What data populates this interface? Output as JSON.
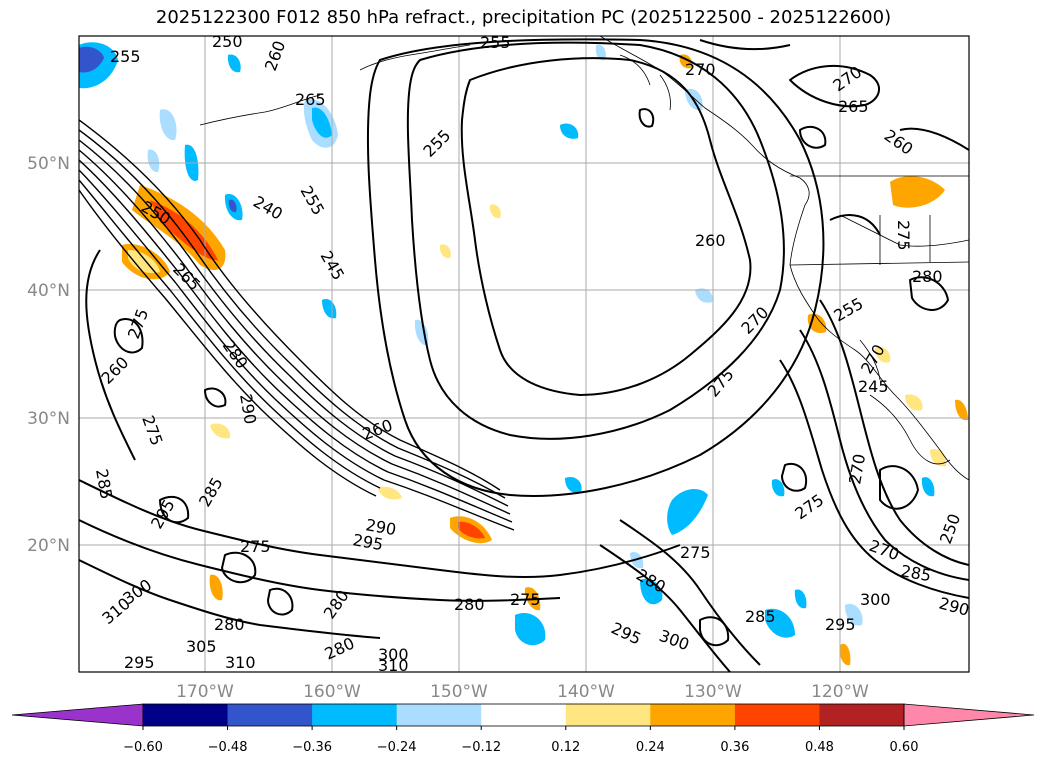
{
  "title": "2025122300 F012 850 hPa refract., precipitation PC (2025122500 - 2025122600)",
  "lat_labels": [
    "50°N",
    "40°N",
    "30°N",
    "20°N"
  ],
  "lon_labels": [
    "170°W",
    "160°W",
    "150°W",
    "140°W",
    "130°W",
    "120°W"
  ],
  "colorbar": {
    "ticks": [
      "−0.60",
      "−0.48",
      "−0.36",
      "−0.24",
      "−0.12",
      "0.12",
      "0.24",
      "0.36",
      "0.48",
      "0.60"
    ],
    "colors": [
      "#9933cc",
      "#000088",
      "#3355cc",
      "#00bbff",
      "#aaddff",
      "#ffffff",
      "#ffe680",
      "#ffa500",
      "#ff4400",
      "#b22222",
      "#ff88aa"
    ]
  },
  "contour_labels": [
    "250",
    "255",
    "260",
    "265",
    "270",
    "275",
    "280",
    "285",
    "290",
    "295",
    "300",
    "305",
    "310",
    "240",
    "245"
  ]
}
